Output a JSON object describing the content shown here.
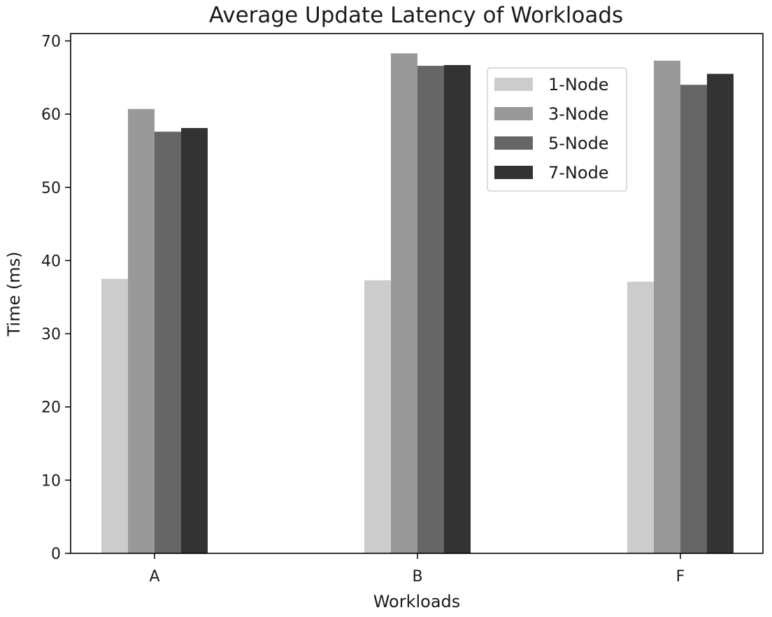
{
  "chart_data": {
    "type": "bar",
    "title": "Average Update Latency of Workloads",
    "xlabel": "Workloads",
    "ylabel": "Time (ms)",
    "categories": [
      "A",
      "B",
      "F"
    ],
    "ylim": [
      0,
      71
    ],
    "yticks": [
      0,
      10,
      20,
      30,
      40,
      50,
      60,
      70
    ],
    "grid": false,
    "legend_position": "top-right",
    "series": [
      {
        "name": "1-Node",
        "color": "#cccccc",
        "values": [
          37.5,
          37.3,
          37.1
        ]
      },
      {
        "name": "3-Node",
        "color": "#999999",
        "values": [
          60.7,
          68.3,
          67.3
        ]
      },
      {
        "name": "5-Node",
        "color": "#666666",
        "values": [
          57.6,
          66.6,
          64.0
        ]
      },
      {
        "name": "7-Node",
        "color": "#333333",
        "values": [
          58.1,
          66.7,
          65.5
        ]
      }
    ]
  }
}
